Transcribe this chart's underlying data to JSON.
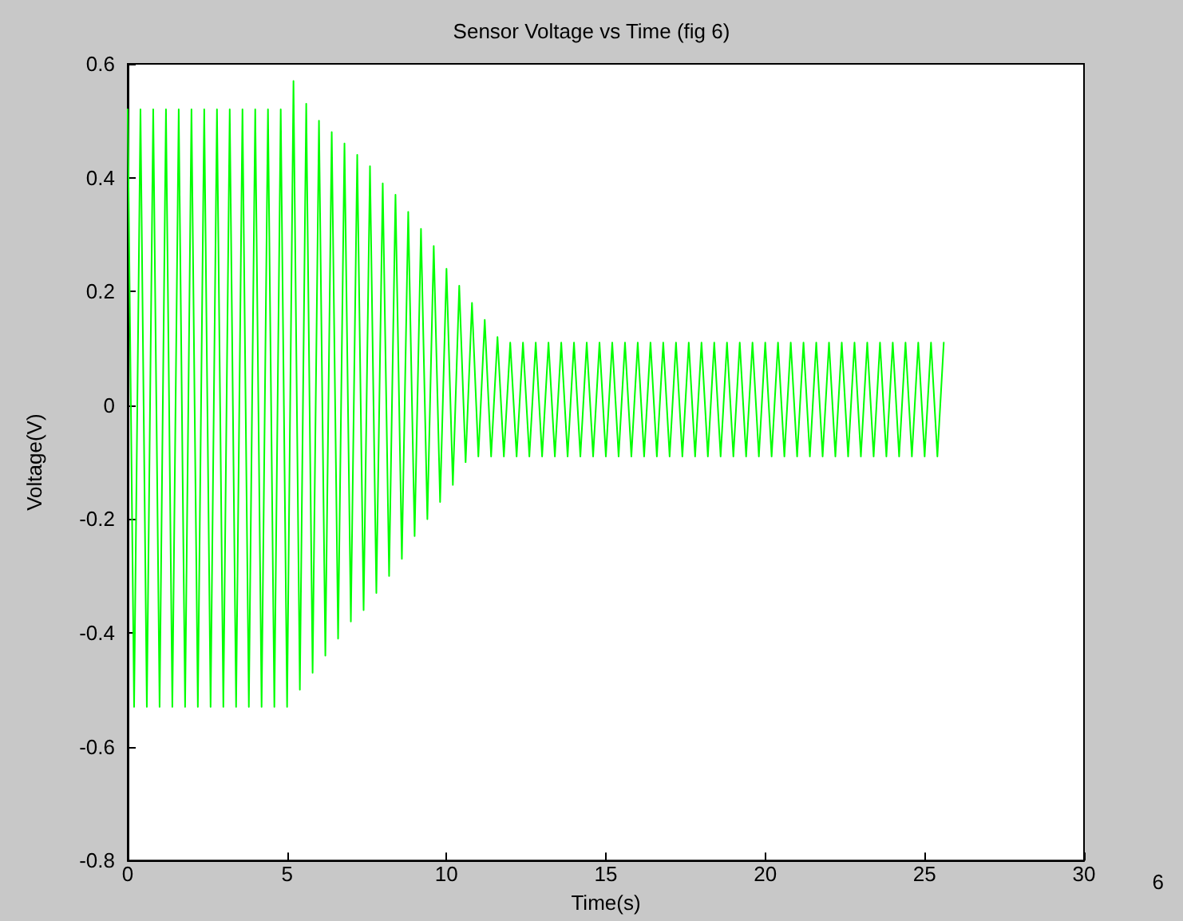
{
  "chart_data": {
    "type": "line",
    "title": "Sensor Voltage vs Time (fig 6)",
    "xlabel": "Time(s)",
    "ylabel": "Voltage(V)",
    "xlim": [
      0,
      30
    ],
    "xticks": [
      0,
      5,
      10,
      15,
      20,
      25,
      30
    ],
    "ylim": [
      -0.8,
      0.6
    ],
    "yticks": [
      -0.8,
      -0.6,
      -0.4,
      -0.2,
      0,
      0.2,
      0.4,
      0.6
    ],
    "grid": false,
    "marker": "none",
    "line_style": "solid",
    "annotations": [
      "6"
    ],
    "series": [
      {
        "color": "#00ff00",
        "x": [
          0,
          0.2,
          0.4,
          0.6,
          0.8,
          1,
          1.2,
          1.4,
          1.6,
          1.8,
          2,
          2.2,
          2.4,
          2.6,
          2.8,
          3,
          3.2,
          3.4,
          3.6,
          3.8,
          4,
          4.2,
          4.4,
          4.6,
          4.8,
          5,
          5.2,
          5.4,
          5.6,
          5.8,
          6,
          6.2,
          6.4,
          6.6,
          6.8,
          7,
          7.2,
          7.4,
          7.6,
          7.8,
          8,
          8.2,
          8.4,
          8.6,
          8.8,
          9,
          9.2,
          9.4,
          9.6,
          9.8,
          10,
          10.2,
          10.4,
          10.6,
          10.8,
          11,
          11.2,
          11.4,
          11.6,
          11.8,
          12,
          12.2,
          12.4,
          12.6,
          12.8,
          13,
          13.2,
          13.4,
          13.6,
          13.8,
          14,
          14.2,
          14.4,
          14.6,
          14.8,
          15,
          15.2,
          15.4,
          15.6,
          15.8,
          16,
          16.2,
          16.4,
          16.6,
          16.8,
          17,
          17.2,
          17.4,
          17.6,
          17.8,
          18,
          18.2,
          18.4,
          18.6,
          18.8,
          19,
          19.2,
          19.4,
          19.6,
          19.8,
          20,
          20.2,
          20.4,
          20.6,
          20.8,
          21,
          21.2,
          21.4,
          21.6,
          21.8,
          22,
          22.2,
          22.4,
          22.6,
          22.8,
          23,
          23.2,
          23.4,
          23.6,
          23.8,
          24,
          24.2,
          24.4,
          24.6,
          24.8,
          25,
          25.2,
          25.4,
          25.6
        ],
        "values": [
          0.52,
          -0.53,
          0.52,
          -0.53,
          0.52,
          -0.53,
          0.52,
          -0.53,
          0.52,
          -0.53,
          0.52,
          -0.53,
          0.52,
          -0.53,
          0.52,
          -0.53,
          0.52,
          -0.53,
          0.52,
          -0.53,
          0.52,
          -0.53,
          0.52,
          -0.53,
          0.52,
          -0.53,
          0.57,
          -0.5,
          0.53,
          -0.47,
          0.5,
          -0.44,
          0.48,
          -0.41,
          0.46,
          -0.38,
          0.44,
          -0.36,
          0.42,
          -0.33,
          0.39,
          -0.3,
          0.37,
          -0.27,
          0.34,
          -0.23,
          0.31,
          -0.2,
          0.28,
          -0.17,
          0.24,
          -0.14,
          0.21,
          -0.1,
          0.18,
          -0.09,
          0.15,
          -0.09,
          0.12,
          -0.09,
          0.11,
          -0.09,
          0.11,
          -0.09,
          0.11,
          -0.09,
          0.11,
          -0.09,
          0.11,
          -0.09,
          0.11,
          -0.09,
          0.11,
          -0.09,
          0.11,
          -0.09,
          0.11,
          -0.09,
          0.11,
          -0.09,
          0.11,
          -0.09,
          0.11,
          -0.09,
          0.11,
          -0.09,
          0.11,
          -0.09,
          0.11,
          -0.09,
          0.11,
          -0.09,
          0.11,
          -0.09,
          0.11,
          -0.09,
          0.11,
          -0.09,
          0.11,
          -0.09,
          0.11,
          -0.09,
          0.11,
          -0.09,
          0.11,
          -0.09,
          0.11,
          -0.09,
          0.11,
          -0.09,
          0.11,
          -0.09,
          0.11,
          -0.09,
          0.11,
          -0.09,
          0.11,
          -0.09,
          0.11,
          -0.09,
          0.11,
          -0.09,
          0.11,
          -0.09,
          0.11,
          -0.09,
          0.11,
          -0.09,
          0.11
        ]
      }
    ]
  }
}
